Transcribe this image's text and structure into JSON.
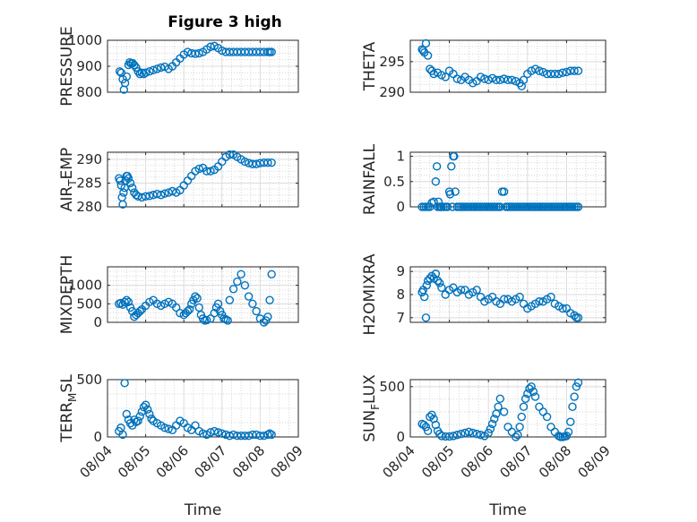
{
  "figure_title": "Figure 3 high",
  "xlabel": "Time",
  "x_ticks": [
    "08/04",
    "08/05",
    "08/06",
    "08/07",
    "08/08",
    "08/09"
  ],
  "marker_color": "#0072BD",
  "chart_data": [
    {
      "type": "scatter",
      "ylabel": "PRESSURE",
      "ylim": [
        800,
        1000
      ],
      "yticks": [
        "800",
        "900",
        "1000"
      ],
      "x": [
        4.32,
        4.36,
        4.4,
        4.43,
        4.46,
        4.5,
        4.55,
        4.58,
        4.62,
        4.66,
        4.7,
        4.75,
        4.8,
        4.85,
        4.9,
        4.95,
        5.0,
        5.1,
        5.2,
        5.3,
        5.4,
        5.5,
        5.6,
        5.7,
        5.8,
        5.9,
        6.0,
        6.1,
        6.2,
        6.3,
        6.4,
        6.5,
        6.6,
        6.7,
        6.8,
        6.9,
        7.0,
        7.1,
        7.2,
        7.3,
        7.4,
        7.5,
        7.6,
        7.7,
        7.8,
        7.9,
        8.0,
        8.1,
        8.2,
        8.25,
        8.3
      ],
      "y": [
        880,
        875,
        850,
        810,
        835,
        860,
        905,
        915,
        910,
        912,
        905,
        895,
        880,
        870,
        875,
        870,
        875,
        880,
        885,
        890,
        895,
        898,
        890,
        900,
        915,
        930,
        945,
        955,
        950,
        948,
        950,
        955,
        965,
        975,
        978,
        970,
        960,
        955,
        955,
        955,
        955,
        955,
        955,
        955,
        955,
        955,
        955,
        955,
        955,
        955,
        955
      ]
    },
    {
      "type": "scatter",
      "ylabel": "THETA",
      "ylim": [
        290,
        298.5
      ],
      "yticks": [
        "290",
        "295"
      ],
      "x": [
        4.3,
        4.33,
        4.36,
        4.4,
        4.45,
        4.5,
        4.55,
        4.6,
        4.7,
        4.8,
        4.9,
        5.0,
        5.1,
        5.2,
        5.3,
        5.4,
        5.5,
        5.6,
        5.7,
        5.8,
        5.9,
        6.0,
        6.1,
        6.2,
        6.3,
        6.4,
        6.5,
        6.6,
        6.7,
        6.8,
        6.85,
        6.9,
        7.0,
        7.1,
        7.2,
        7.3,
        7.4,
        7.5,
        7.6,
        7.7,
        7.8,
        7.9,
        8.0,
        8.1,
        8.2,
        8.3
      ],
      "y": [
        297.0,
        296.8,
        296.5,
        298.0,
        296.0,
        293.8,
        293.5,
        293.0,
        293.2,
        292.8,
        292.5,
        293.5,
        293.0,
        292.2,
        292.0,
        292.5,
        292.0,
        291.5,
        291.8,
        292.5,
        292.2,
        292.0,
        292.3,
        292.0,
        292.0,
        292.2,
        292.0,
        292.0,
        291.8,
        291.5,
        291.0,
        292.0,
        293.0,
        293.5,
        293.8,
        293.5,
        293.3,
        293.0,
        293.0,
        293.0,
        293.0,
        293.2,
        293.3,
        293.5,
        293.5,
        293.5
      ]
    },
    {
      "type": "scatter",
      "ylabel": "AIR_TEMP",
      "ylim": [
        280,
        291.5
      ],
      "yticks": [
        "280",
        "285",
        "290"
      ],
      "x": [
        4.3,
        4.33,
        4.36,
        4.38,
        4.4,
        4.42,
        4.45,
        4.48,
        4.5,
        4.52,
        4.55,
        4.6,
        4.65,
        4.7,
        4.75,
        4.8,
        4.9,
        5.0,
        5.1,
        5.2,
        5.3,
        5.4,
        5.5,
        5.6,
        5.7,
        5.8,
        5.9,
        6.0,
        6.1,
        6.2,
        6.3,
        6.4,
        6.5,
        6.6,
        6.7,
        6.8,
        6.9,
        7.0,
        7.1,
        7.2,
        7.3,
        7.4,
        7.5,
        7.6,
        7.7,
        7.8,
        7.9,
        8.0,
        8.1,
        8.2,
        8.3
      ],
      "y": [
        286.0,
        285.5,
        284.5,
        282.0,
        280.5,
        283.0,
        284.0,
        285.5,
        286.5,
        286.5,
        286.0,
        285.0,
        284.0,
        283.0,
        282.5,
        282.2,
        282.0,
        282.2,
        282.3,
        282.5,
        282.7,
        282.5,
        282.8,
        283.0,
        283.3,
        283.0,
        283.5,
        284.5,
        285.5,
        286.5,
        287.5,
        288.0,
        288.2,
        287.5,
        287.5,
        287.8,
        288.5,
        289.5,
        290.5,
        291.0,
        291.0,
        290.5,
        290.0,
        289.5,
        289.2,
        289.0,
        289.0,
        289.2,
        289.3,
        289.3,
        289.3
      ]
    },
    {
      "type": "scatter",
      "ylabel": "RAINFALL",
      "ylim": [
        0,
        1.08
      ],
      "yticks": [
        "0",
        "0.5",
        "1"
      ],
      "x": [
        4.3,
        4.35,
        4.4,
        4.45,
        4.5,
        4.55,
        4.6,
        4.65,
        4.68,
        4.7,
        4.72,
        4.75,
        4.78,
        4.8,
        4.85,
        4.9,
        4.95,
        5.0,
        5.02,
        5.05,
        5.08,
        5.1,
        5.12,
        5.15,
        5.2,
        5.25,
        5.3,
        5.35,
        5.4,
        5.45,
        5.5,
        5.55,
        5.6,
        5.65,
        5.7,
        5.75,
        5.8,
        5.85,
        5.9,
        5.95,
        6.0,
        6.05,
        6.1,
        6.15,
        6.2,
        6.25,
        6.3,
        6.35,
        6.4,
        6.45,
        6.5,
        6.55,
        6.6,
        6.65,
        6.7,
        6.75,
        6.8,
        6.85,
        6.9,
        6.95,
        7.0,
        7.05,
        7.1,
        7.15,
        7.2,
        7.25,
        7.3,
        7.35,
        7.4,
        7.45,
        7.5,
        7.55,
        7.6,
        7.65,
        7.7,
        7.75,
        7.8,
        7.85,
        7.9,
        7.95,
        8.0,
        8.05,
        8.1,
        8.15,
        8.2,
        8.25,
        8.3
      ],
      "y": [
        0,
        0,
        0,
        0,
        0,
        0.08,
        0.1,
        0.5,
        0.8,
        0,
        0.1,
        0,
        0,
        0,
        0,
        0,
        0,
        0.3,
        0.25,
        0.8,
        0,
        1.0,
        1.0,
        0.3,
        0,
        0,
        0,
        0,
        0,
        0,
        0,
        0,
        0,
        0,
        0,
        0,
        0,
        0,
        0,
        0,
        0,
        0,
        0,
        0,
        0,
        0,
        0,
        0.3,
        0.3,
        0,
        0,
        0,
        0,
        0,
        0,
        0,
        0,
        0,
        0,
        0,
        0,
        0,
        0,
        0,
        0,
        0,
        0,
        0,
        0,
        0,
        0,
        0,
        0,
        0,
        0,
        0,
        0,
        0,
        0,
        0,
        0,
        0,
        0,
        0,
        0,
        0,
        0
      ]
    },
    {
      "type": "scatter",
      "ylabel": "MIXDEPTH",
      "ylim": [
        0,
        1500
      ],
      "yticks": [
        "0",
        "500",
        "1000"
      ],
      "x": [
        4.3,
        4.35,
        4.4,
        4.45,
        4.5,
        4.55,
        4.6,
        4.65,
        4.7,
        4.75,
        4.8,
        4.85,
        4.9,
        5.0,
        5.1,
        5.2,
        5.3,
        5.4,
        5.5,
        5.6,
        5.7,
        5.8,
        5.9,
        6.0,
        6.05,
        6.1,
        6.15,
        6.2,
        6.25,
        6.3,
        6.35,
        6.4,
        6.45,
        6.5,
        6.55,
        6.6,
        6.7,
        6.8,
        6.85,
        6.9,
        6.95,
        7.0,
        7.05,
        7.1,
        7.15,
        7.2,
        7.3,
        7.4,
        7.5,
        7.6,
        7.7,
        7.8,
        7.9,
        8.0,
        8.1,
        8.15,
        8.2,
        8.25,
        8.3
      ],
      "y": [
        500,
        520,
        480,
        550,
        600,
        550,
        400,
        300,
        150,
        200,
        250,
        300,
        350,
        450,
        550,
        600,
        500,
        450,
        500,
        550,
        500,
        400,
        250,
        200,
        250,
        300,
        350,
        500,
        600,
        700,
        650,
        400,
        200,
        100,
        50,
        60,
        100,
        250,
        400,
        500,
        300,
        200,
        100,
        80,
        50,
        600,
        900,
        1100,
        1300,
        1000,
        700,
        500,
        300,
        100,
        0,
        50,
        150,
        600,
        1300
      ]
    },
    {
      "type": "scatter",
      "ylabel": "H2OMIXRA",
      "ylim": [
        6.8,
        9.2
      ],
      "yticks": [
        "7",
        "8",
        "9"
      ],
      "x": [
        4.3,
        4.33,
        4.36,
        4.4,
        4.42,
        4.45,
        4.5,
        4.55,
        4.6,
        4.65,
        4.7,
        4.75,
        4.8,
        4.9,
        5.0,
        5.1,
        5.2,
        5.3,
        5.4,
        5.5,
        5.6,
        5.7,
        5.8,
        5.9,
        6.0,
        6.1,
        6.2,
        6.3,
        6.4,
        6.5,
        6.6,
        6.7,
        6.8,
        6.9,
        7.0,
        7.1,
        7.2,
        7.3,
        7.4,
        7.5,
        7.6,
        7.7,
        7.8,
        7.9,
        8.0,
        8.1,
        8.2,
        8.25,
        8.3
      ],
      "y": [
        8.1,
        8.2,
        7.9,
        7.0,
        8.4,
        8.6,
        8.7,
        8.8,
        8.7,
        8.9,
        8.6,
        8.5,
        8.3,
        8.0,
        8.2,
        8.3,
        8.1,
        8.2,
        8.2,
        8.0,
        8.1,
        8.2,
        7.9,
        7.7,
        7.8,
        7.9,
        7.7,
        7.6,
        7.8,
        7.8,
        7.7,
        7.8,
        7.9,
        7.6,
        7.4,
        7.5,
        7.6,
        7.7,
        7.7,
        7.8,
        7.9,
        7.6,
        7.5,
        7.4,
        7.4,
        7.2,
        7.1,
        7.0,
        7.0
      ]
    },
    {
      "type": "scatter",
      "ylabel": "TERR_MSL",
      "ylim": [
        0,
        500
      ],
      "yticks": [
        "0",
        "500"
      ],
      "x": [
        4.3,
        4.35,
        4.4,
        4.45,
        4.5,
        4.55,
        4.6,
        4.65,
        4.7,
        4.75,
        4.8,
        4.85,
        4.9,
        4.95,
        5.0,
        5.05,
        5.1,
        5.15,
        5.2,
        5.3,
        5.4,
        5.5,
        5.6,
        5.7,
        5.8,
        5.9,
        6.0,
        6.1,
        6.2,
        6.3,
        6.4,
        6.5,
        6.6,
        6.7,
        6.8,
        6.9,
        7.0,
        7.1,
        7.2,
        7.3,
        7.4,
        7.5,
        7.6,
        7.7,
        7.8,
        7.9,
        8.0,
        8.1,
        8.2,
        8.25,
        8.3
      ],
      "y": [
        50,
        80,
        20,
        470,
        200,
        150,
        120,
        100,
        150,
        130,
        140,
        180,
        220,
        260,
        280,
        240,
        200,
        160,
        140,
        120,
        100,
        80,
        70,
        60,
        100,
        140,
        120,
        80,
        60,
        100,
        50,
        30,
        20,
        40,
        50,
        40,
        30,
        20,
        10,
        20,
        10,
        10,
        10,
        10,
        20,
        20,
        10,
        10,
        20,
        30,
        20
      ]
    },
    {
      "type": "scatter",
      "ylabel": "SUN_FLUX",
      "ylim": [
        0,
        570
      ],
      "yticks": [
        "0",
        "500"
      ],
      "x": [
        4.3,
        4.35,
        4.4,
        4.45,
        4.5,
        4.55,
        4.6,
        4.65,
        4.7,
        4.75,
        4.8,
        4.9,
        5.0,
        5.1,
        5.2,
        5.3,
        5.4,
        5.5,
        5.6,
        5.7,
        5.8,
        5.9,
        6.0,
        6.05,
        6.1,
        6.15,
        6.2,
        6.25,
        6.3,
        6.4,
        6.5,
        6.6,
        6.7,
        6.75,
        6.8,
        6.85,
        6.9,
        6.95,
        7.0,
        7.05,
        7.1,
        7.15,
        7.2,
        7.3,
        7.4,
        7.5,
        7.6,
        7.7,
        7.8,
        7.85,
        7.9,
        7.95,
        8.0,
        8.05,
        8.1,
        8.15,
        8.2,
        8.25,
        8.3
      ],
      "y": [
        130,
        120,
        100,
        60,
        200,
        220,
        180,
        120,
        60,
        30,
        10,
        5,
        5,
        10,
        20,
        30,
        40,
        50,
        40,
        30,
        20,
        10,
        40,
        80,
        130,
        180,
        230,
        300,
        380,
        250,
        100,
        50,
        0,
        20,
        100,
        200,
        300,
        380,
        430,
        480,
        500,
        450,
        400,
        300,
        250,
        200,
        100,
        50,
        10,
        0,
        0,
        5,
        10,
        50,
        150,
        300,
        400,
        500,
        540
      ]
    }
  ]
}
